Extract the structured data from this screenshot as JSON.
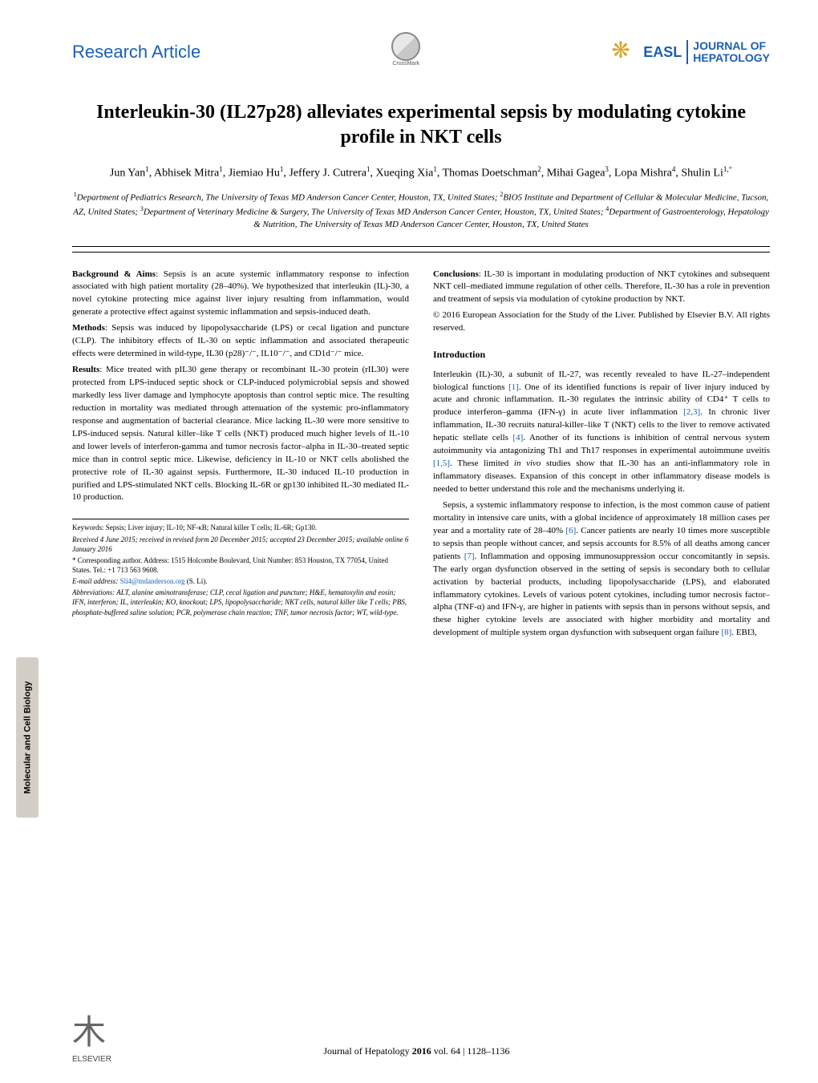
{
  "sidebar": {
    "label": "Molecular and Cell Biology"
  },
  "header": {
    "article_type": "Research Article",
    "crossmark_label": "CrossMark",
    "journal": {
      "easl": "EASL",
      "name_line1": "JOURNAL OF",
      "name_line2": "HEPATOLOGY"
    }
  },
  "title": "Interleukin-30 (IL27p28) alleviates experimental sepsis by modulating cytokine profile in NKT cells",
  "authors_html": "Jun Yan<sup>1</sup>, Abhisek Mitra<sup>1</sup>, Jiemiao Hu<sup>1</sup>, Jeffery J. Cutrera<sup>1</sup>, Xueqing Xia<sup>1</sup>, Thomas Doetschman<sup>2</sup>, Mihai Gagea<sup>3</sup>, Lopa Mishra<sup>4</sup>, Shulin Li<sup>1,</sup><sup class=\"corr\">*</sup>",
  "affiliations_html": "<sup>1</sup>Department of Pediatrics Research, The University of Texas MD Anderson Cancer Center, Houston, TX, United States; <sup>2</sup>BIO5 Institute and Department of Cellular & Molecular Medicine, Tucson, AZ, United States; <sup>3</sup>Department of Veterinary Medicine & Surgery, The University of Texas MD Anderson Cancer Center, Houston, TX, United States; <sup>4</sup>Department of Gastroenterology, Hepatology & Nutrition, The University of Texas MD Anderson Cancer Center, Houston, TX, United States",
  "abstract": {
    "background_label": "Background & Aims",
    "background": ": Sepsis is an acute systemic inflammatory response to infection associated with high patient mortality (28–40%). We hypothesized that interleukin (IL)-30, a novel cytokine protecting mice against liver injury resulting from inflammation, would generate a protective effect against systemic inflammation and sepsis-induced death.",
    "methods_label": "Methods",
    "methods": ": Sepsis was induced by lipopolysaccharide (LPS) or cecal ligation and puncture (CLP). The inhibitory effects of IL-30 on septic inflammation and associated therapeutic effects were determined in wild-type, IL30 (p28)⁻/⁻, IL10⁻/⁻, and CD1d⁻/⁻ mice.",
    "results_label": "Results",
    "results": ": Mice treated with pIL30 gene therapy or recombinant IL-30 protein (rIL30) were protected from LPS-induced septic shock or CLP-induced polymicrobial sepsis and showed markedly less liver damage and lymphocyte apoptosis than control septic mice. The resulting reduction in mortality was mediated through attenuation of the systemic pro-inflammatory response and augmentation of bacterial clearance. Mice lacking IL-30 were more sensitive to LPS-induced sepsis. Natural killer–like T cells (NKT) produced much higher levels of IL-10 and lower levels of interferon-gamma and tumor necrosis factor–alpha in IL-30–treated septic mice than in control septic mice. Likewise, deficiency in IL-10 or NKT cells abolished the protective role of IL-30 against sepsis. Furthermore, IL-30 induced IL-10 production in purified and LPS-stimulated NKT cells. Blocking IL-6R or gp130 inhibited IL-30 mediated IL-10 production.",
    "conclusions_label": "Conclusions",
    "conclusions": ": IL-30 is important in modulating production of NKT cytokines and subsequent NKT cell–mediated immune regulation of other cells. Therefore, IL-30 has a role in prevention and treatment of sepsis via modulation of cytokine production by NKT.",
    "copyright": "© 2016 European Association for the Study of the Liver. Published by Elsevier B.V. All rights reserved."
  },
  "intro": {
    "heading": "Introduction",
    "para1_html": "Interleukin (IL)-30, a subunit of IL-27, was recently revealed to have IL-27–independent biological functions <span class=\"cite\">[1]</span>. One of its identified functions is repair of liver injury induced by acute and chronic inflammation. IL-30 regulates the intrinsic ability of CD4⁺ T cells to produce interferon–gamma (IFN-γ) in acute liver inflammation <span class=\"cite\">[2,3]</span>. In chronic liver inflammation, IL-30 recruits natural-killer–like T (NKT) cells to the liver to remove activated hepatic stellate cells <span class=\"cite\">[4]</span>. Another of its functions is inhibition of central nervous system autoimmunity via antagonizing Th1 and Th17 responses in experimental autoimmune uveitis <span class=\"cite\">[1,5]</span>. These limited <i>in vivo</i> studies show that IL-30 has an anti-inflammatory role in inflammatory diseases. Expansion of this concept in other inflammatory disease models is needed to better understand this role and the mechanisms underlying it.",
    "para2_html": "Sepsis, a systemic inflammatory response to infection, is the most common cause of patient mortality in intensive care units, with a global incidence of approximately 18 million cases per year and a mortality rate of 28–40% <span class=\"cite\">[6]</span>. Cancer patients are nearly 10 times more susceptible to sepsis than people without cancer, and sepsis accounts for 8.5% of all deaths among cancer patients <span class=\"cite\">[7]</span>. Inflammation and opposing immunosuppression occur concomitantly in sepsis. The early organ dysfunction observed in the setting of sepsis is secondary both to cellular activation by bacterial products, including lipopolysaccharide (LPS), and elaborated inflammatory cytokines. Levels of various potent cytokines, including tumor necrosis factor–alpha (TNF-α) and IFN-γ, are higher in patients with sepsis than in persons without sepsis, and these higher cytokine levels are associated with higher morbidity and mortality and development of multiple system organ dysfunction with subsequent organ failure <span class=\"cite\">[8]</span>. EBI3,"
  },
  "footnotes": {
    "keywords": "Keywords: Sepsis; Liver injury; IL-10; NF-κB; Natural killer T cells; IL-6R; Gp130.",
    "received": "Received 4 June 2015; received in revised form 20 December 2015; accepted 23 December 2015; available online 6 January 2016",
    "corresponding": "* Corresponding author. Address: 1515 Holcombe Boulevard, Unit Number: 853 Houston, TX 77054, United States. Tel.: +1 713 563 9608.",
    "email_label": "E-mail address:",
    "email": "Sli4@mdanderson.org",
    "email_suffix": " (S. Li).",
    "abbreviations": "Abbreviations: ALT, alanine aminotransferase; CLP, cecal ligation and puncture; H&E, hematoxylin and eosin; IFN, interferon; IL, interleukin; KO, knockout; LPS, lipopolysaccharide; NKT cells, natural killer like T cells; PBS, phosphate-buffered saline solution; PCR, polymerase chain reaction; TNF, tumor necrosis factor; WT, wild-type."
  },
  "footer": {
    "elsevier": "ELSEVIER",
    "citation_prefix": "Journal of Hepatology ",
    "year": "2016",
    "citation_suffix": " vol. 64 | 1128–1136"
  },
  "colors": {
    "link": "#1a5fb4",
    "sidebar_bg": "#d4cfc6",
    "text": "#000000",
    "bg": "#ffffff"
  }
}
